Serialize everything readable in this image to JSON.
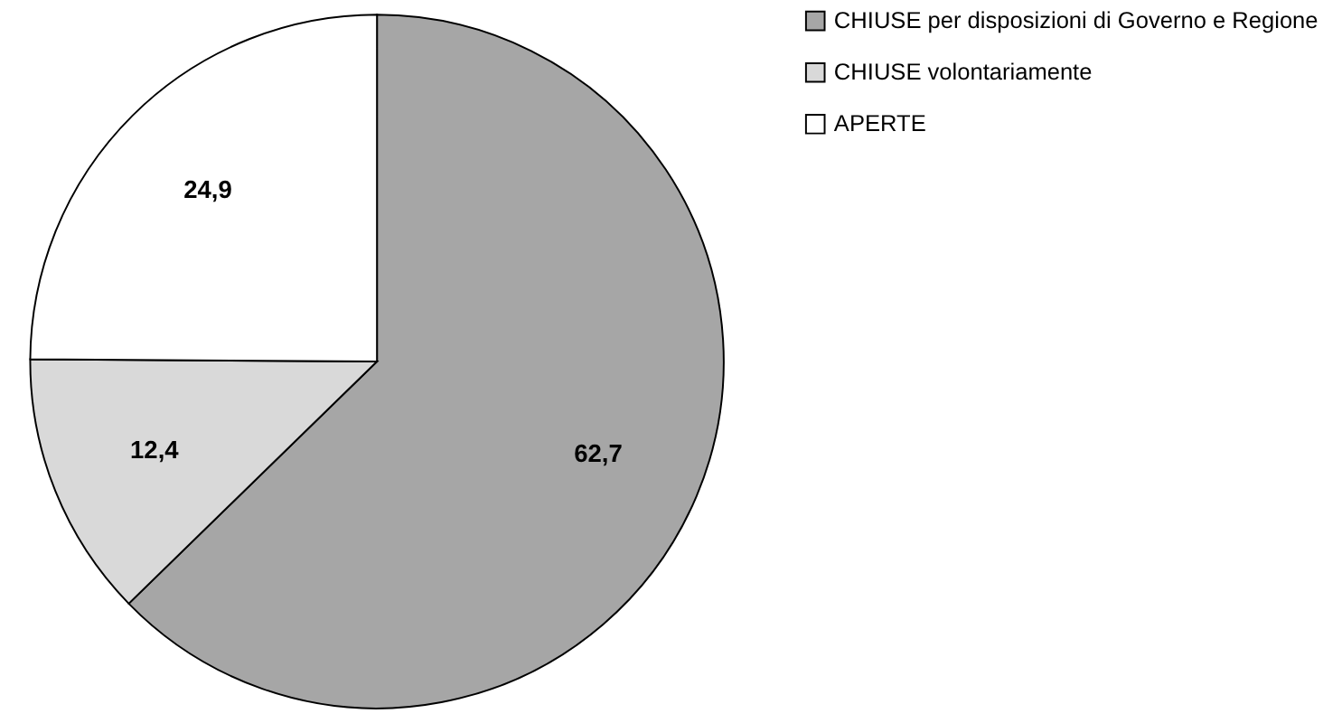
{
  "chart_data": {
    "type": "pie",
    "categories": [
      "CHIUSE per disposizioni di Governo e Regione",
      "CHIUSE volontariamente",
      "APERTE"
    ],
    "values": [
      62.7,
      12.4,
      24.9
    ],
    "colors": [
      "#a6a6a6",
      "#d9d9d9",
      "#ffffff"
    ],
    "value_labels": [
      "62,7",
      "12,4",
      "24,9"
    ],
    "legend": "right"
  }
}
